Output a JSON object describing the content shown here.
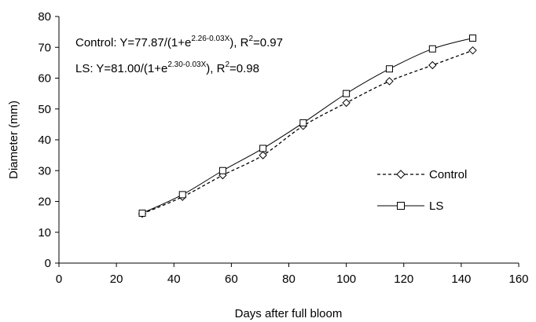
{
  "chart_data": {
    "type": "line",
    "xlabel": "Days after full bloom",
    "ylabel": "Diameter  (mm)",
    "xlim": [
      0,
      160
    ],
    "ylim": [
      0,
      80
    ],
    "xticks": [
      "0",
      "20",
      "40",
      "60",
      "80",
      "100",
      "120",
      "140",
      "160"
    ],
    "yticks": [
      "0",
      "10",
      "20",
      "30",
      "40",
      "50",
      "60",
      "70",
      "80"
    ],
    "grid": false,
    "legend_position": "right",
    "annotations": [
      {
        "prefix": "Control: Y=77.87/(1+e",
        "exponent": "2.26-0.03X",
        "suffix": "), R",
        "r2_exp": "2",
        "r2_value": "=0.97"
      },
      {
        "prefix": "LS: Y=81.00/(1+e",
        "exponent": "2.30-0.03X",
        "suffix": "), R",
        "r2_exp": "2",
        "r2_value": "=0.98"
      }
    ],
    "series": [
      {
        "name": "Control",
        "marker": "diamond",
        "line": "dashed",
        "x": [
          29,
          43,
          57,
          71,
          85,
          100,
          115,
          130,
          144
        ],
        "y": [
          16,
          21.5,
          28.5,
          35,
          44.5,
          52,
          59,
          64.2,
          69
        ]
      },
      {
        "name": "LS",
        "marker": "square",
        "line": "solid",
        "x": [
          29,
          43,
          57,
          71,
          85,
          100,
          115,
          130,
          144
        ],
        "y": [
          16.2,
          22.2,
          30,
          37.2,
          45.5,
          55,
          63,
          69.5,
          73
        ]
      }
    ],
    "fits": [
      {
        "series": "Control",
        "a": 77.87,
        "b": 2.26,
        "c": 0.03
      },
      {
        "series": "LS",
        "a": 81.0,
        "b": 2.3,
        "c": 0.03
      }
    ]
  }
}
